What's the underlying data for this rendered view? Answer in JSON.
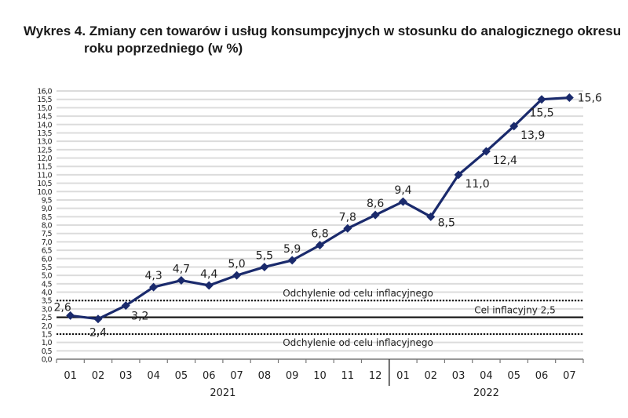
{
  "chart_data": {
    "type": "line",
    "title": "Wykres 4. Zmiany cen towarów i usług konsumpcyjnych w stosunku do analogicznego okresu",
    "title_line2": "roku poprzedniego (w %)",
    "categories": [
      "01",
      "02",
      "03",
      "04",
      "05",
      "06",
      "07",
      "08",
      "09",
      "10",
      "11",
      "12",
      "01",
      "02",
      "03",
      "04",
      "05",
      "06",
      "07"
    ],
    "year_groups": [
      {
        "label": "2021",
        "months": 12
      },
      {
        "label": "2022",
        "months": 7
      }
    ],
    "values": [
      2.6,
      2.4,
      3.2,
      4.3,
      4.7,
      4.4,
      5.0,
      5.5,
      5.9,
      6.8,
      7.8,
      8.6,
      9.4,
      8.5,
      11.0,
      12.4,
      13.9,
      15.5,
      15.6
    ],
    "data_labels": [
      "2,6",
      "2,4",
      "3,2",
      "4,3",
      "4,7",
      "4,4",
      "5,0",
      "5,5",
      "5,9",
      "6,8",
      "7,8",
      "8,6",
      "9,4",
      "8,5",
      "11,0",
      "12,4",
      "13,9",
      "15,5",
      "15,6"
    ],
    "ylim": [
      0,
      16
    ],
    "ytick_step": 0.5,
    "yticks": [
      "0,0",
      "0,5",
      "1,0",
      "1,5",
      "2,0",
      "2,5",
      "3,0",
      "3,5",
      "4,0",
      "4,5",
      "5,0",
      "5,5",
      "6,0",
      "6,5",
      "7,0",
      "7,5",
      "8,0",
      "8,5",
      "9,0",
      "9,5",
      "10,0",
      "10,5",
      "11,0",
      "11,5",
      "12,0",
      "12,5",
      "13,0",
      "13,5",
      "14,0",
      "14,5",
      "15,0",
      "15,5",
      "16,0"
    ],
    "grid": true,
    "series_color": "#1a2a6c",
    "reference_lines": [
      {
        "value": 3.5,
        "style": "dotted",
        "label": "Odchylenie od celu inflacyjnego"
      },
      {
        "value": 2.5,
        "style": "solid",
        "label": "Cel inflacyjny 2,5"
      },
      {
        "value": 1.5,
        "style": "dotted",
        "label": "Odchylenie od celu inflacyjnego"
      }
    ]
  }
}
